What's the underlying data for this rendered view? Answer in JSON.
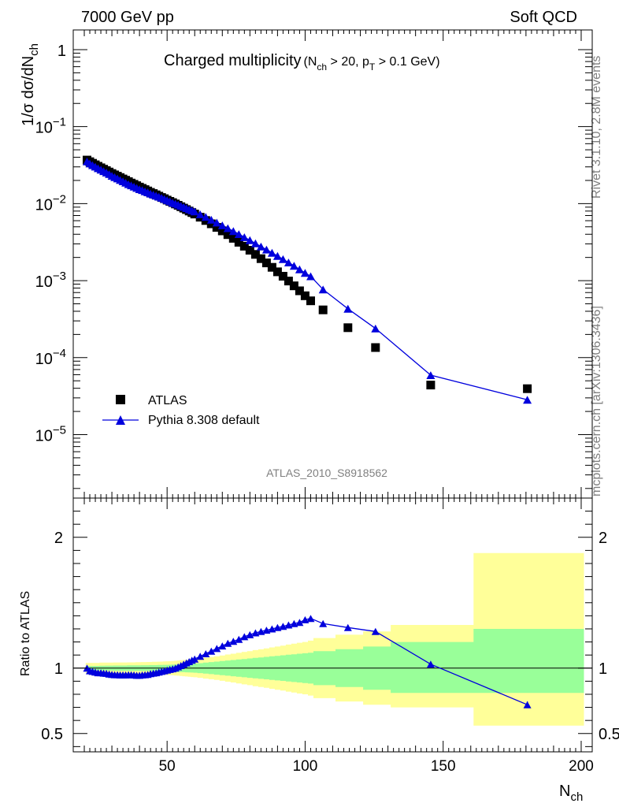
{
  "header": {
    "left": "7000 GeV pp",
    "right": "Soft QCD"
  },
  "main_title": {
    "text": "Charged multiplicity",
    "cond_open": "(N",
    "cond_sub1": "ch",
    "cond_mid": " > 20, p",
    "cond_sub2": "T",
    "cond_end": " > 0.1 GeV)"
  },
  "side_labels": {
    "rivet": "Rivet 3.1.10,  2.8M events",
    "mcplots": "mcplots.cern.ch [arXiv:1306.3436]"
  },
  "analysis_label": "ATLAS_2010_S8918562",
  "top_axis": {
    "ylabel_prefix": "1/σ dσ/dN",
    "ylabel_sub": "ch",
    "scale": "log",
    "ylim": [
      1.5e-06,
      1.8
    ],
    "ticks": [
      {
        "value": 1,
        "label": "1",
        "exp": ""
      },
      {
        "value": 0.1,
        "label": "10",
        "exp": "−1"
      },
      {
        "value": 0.01,
        "label": "10",
        "exp": "−2"
      },
      {
        "value": 0.001,
        "label": "10",
        "exp": "−3"
      },
      {
        "value": 0.0001,
        "label": "10",
        "exp": "−4"
      },
      {
        "value": 1e-05,
        "label": "10",
        "exp": "−5"
      }
    ]
  },
  "bottom_axis": {
    "ylabel": "Ratio to ATLAS",
    "ylim": [
      0.36,
      2.3
    ],
    "ticks": [
      {
        "value": 2,
        "label": "2"
      },
      {
        "value": 1,
        "label": "1"
      },
      {
        "value": 0.5,
        "label": "0.5"
      }
    ]
  },
  "x_axis": {
    "label": "N",
    "label_sub": "ch",
    "xlim": [
      16,
      204
    ],
    "ticks": [
      {
        "value": 50,
        "label": "50"
      },
      {
        "value": 100,
        "label": "100"
      },
      {
        "value": 150,
        "label": "150"
      },
      {
        "value": 200,
        "label": "200"
      }
    ]
  },
  "legend": {
    "position": "lower-left",
    "entries": [
      {
        "label": "ATLAS",
        "marker": "square",
        "color": "#000000"
      },
      {
        "label": "Pythia 8.308 default",
        "marker": "triangle",
        "color": "#0000dd"
      }
    ]
  },
  "colors": {
    "data": "#000000",
    "mc": "#0000dd",
    "band_outer": "#ffff99",
    "band_inner": "#99ff99"
  },
  "chart_data": {
    "type": "scatter",
    "title": "Charged multiplicity",
    "xlabel": "Nch",
    "ylabel": "1/σ dσ/dNch",
    "yscale": "log",
    "x": [
      21,
      22,
      23,
      24,
      25,
      26,
      27,
      28,
      29,
      30,
      31,
      32,
      33,
      34,
      35,
      36,
      37,
      38,
      39,
      40,
      41,
      42,
      43,
      44,
      45,
      46,
      47,
      48,
      49,
      50,
      51,
      52,
      53,
      54,
      55,
      56,
      57,
      58,
      59,
      60,
      62,
      64,
      66,
      68,
      70,
      72,
      74,
      76,
      78,
      80,
      82,
      84,
      86,
      88,
      90,
      92,
      94,
      96,
      98,
      100,
      102,
      106.5,
      115.5,
      125.5,
      145.5,
      180.5
    ],
    "series": [
      {
        "name": "ATLAS",
        "values": [
          0.0368,
          0.035,
          0.0334,
          0.0319,
          0.0305,
          0.0292,
          0.028,
          0.0268,
          0.0257,
          0.0246,
          0.0236,
          0.0227,
          0.0218,
          0.0209,
          0.0201,
          0.0193,
          0.0185,
          0.0178,
          0.0171,
          0.0164,
          0.0158,
          0.0152,
          0.0146,
          0.014,
          0.0135,
          0.013,
          0.0125,
          0.012,
          0.0116,
          0.0111,
          0.0107,
          0.0103,
          0.0099,
          0.00951,
          0.00912,
          0.00874,
          0.00837,
          0.00801,
          0.00766,
          0.00732,
          0.00666,
          0.00604,
          0.00546,
          0.00492,
          0.00442,
          0.00396,
          0.00354,
          0.00315,
          0.0028,
          0.00248,
          0.00219,
          0.00193,
          0.0017,
          0.00149,
          0.0013,
          0.00114,
          0.000987,
          0.000855,
          0.000738,
          0.000636,
          0.000547,
          0.000417,
          0.000245,
          0.000135,
          4.4e-05,
          3.95e-05
        ],
        "ratio_band_inner": [
          [
            0.985,
            1.015
          ],
          [
            0.984,
            1.016
          ],
          [
            0.984,
            1.016
          ],
          [
            0.983,
            1.017
          ],
          [
            0.983,
            1.017
          ],
          [
            0.982,
            1.018
          ],
          [
            0.982,
            1.018
          ],
          [
            0.981,
            1.019
          ],
          [
            0.981,
            1.019
          ],
          [
            0.981,
            1.019
          ],
          [
            0.98,
            1.02
          ],
          [
            0.98,
            1.02
          ],
          [
            0.98,
            1.02
          ],
          [
            0.98,
            1.02
          ],
          [
            0.98,
            1.02
          ],
          [
            0.979,
            1.021
          ],
          [
            0.979,
            1.021
          ],
          [
            0.979,
            1.021
          ],
          [
            0.979,
            1.021
          ],
          [
            0.979,
            1.021
          ],
          [
            0.978,
            1.022
          ],
          [
            0.978,
            1.022
          ],
          [
            0.978,
            1.022
          ],
          [
            0.977,
            1.023
          ],
          [
            0.977,
            1.023
          ],
          [
            0.977,
            1.023
          ],
          [
            0.976,
            1.024
          ],
          [
            0.976,
            1.024
          ],
          [
            0.975,
            1.025
          ],
          [
            0.975,
            1.025
          ],
          [
            0.974,
            1.026
          ],
          [
            0.973,
            1.027
          ],
          [
            0.972,
            1.028
          ],
          [
            0.971,
            1.029
          ],
          [
            0.97,
            1.03
          ],
          [
            0.969,
            1.031
          ],
          [
            0.968,
            1.032
          ],
          [
            0.967,
            1.033
          ],
          [
            0.966,
            1.034
          ],
          [
            0.965,
            1.035
          ],
          [
            0.962,
            1.038
          ],
          [
            0.958,
            1.042
          ],
          [
            0.954,
            1.046
          ],
          [
            0.95,
            1.05
          ],
          [
            0.946,
            1.054
          ],
          [
            0.942,
            1.058
          ],
          [
            0.938,
            1.062
          ],
          [
            0.934,
            1.066
          ],
          [
            0.93,
            1.07
          ],
          [
            0.926,
            1.074
          ],
          [
            0.922,
            1.078
          ],
          [
            0.918,
            1.082
          ],
          [
            0.914,
            1.086
          ],
          [
            0.91,
            1.09
          ],
          [
            0.906,
            1.094
          ],
          [
            0.902,
            1.098
          ],
          [
            0.898,
            1.102
          ],
          [
            0.894,
            1.106
          ],
          [
            0.89,
            1.11
          ],
          [
            0.886,
            1.114
          ],
          [
            0.882,
            1.118
          ],
          [
            0.87,
            1.13
          ],
          [
            0.855,
            1.145
          ],
          [
            0.835,
            1.165
          ],
          [
            0.81,
            1.2
          ],
          [
            0.81,
            1.3
          ]
        ],
        "ratio_band_outer": [
          [
            0.96,
            1.04
          ],
          [
            0.96,
            1.04
          ],
          [
            0.96,
            1.04
          ],
          [
            0.96,
            1.04
          ],
          [
            0.96,
            1.04
          ],
          [
            0.958,
            1.042
          ],
          [
            0.958,
            1.042
          ],
          [
            0.958,
            1.042
          ],
          [
            0.958,
            1.042
          ],
          [
            0.958,
            1.042
          ],
          [
            0.957,
            1.043
          ],
          [
            0.957,
            1.043
          ],
          [
            0.957,
            1.043
          ],
          [
            0.957,
            1.043
          ],
          [
            0.957,
            1.043
          ],
          [
            0.956,
            1.044
          ],
          [
            0.956,
            1.044
          ],
          [
            0.956,
            1.044
          ],
          [
            0.955,
            1.045
          ],
          [
            0.955,
            1.045
          ],
          [
            0.954,
            1.046
          ],
          [
            0.954,
            1.046
          ],
          [
            0.953,
            1.047
          ],
          [
            0.953,
            1.047
          ],
          [
            0.952,
            1.048
          ],
          [
            0.952,
            1.048
          ],
          [
            0.951,
            1.049
          ],
          [
            0.95,
            1.05
          ],
          [
            0.949,
            1.051
          ],
          [
            0.948,
            1.052
          ],
          [
            0.947,
            1.053
          ],
          [
            0.946,
            1.054
          ],
          [
            0.944,
            1.056
          ],
          [
            0.942,
            1.058
          ],
          [
            0.94,
            1.06
          ],
          [
            0.938,
            1.062
          ],
          [
            0.936,
            1.064
          ],
          [
            0.934,
            1.066
          ],
          [
            0.932,
            1.068
          ],
          [
            0.93,
            1.07
          ],
          [
            0.926,
            1.074
          ],
          [
            0.92,
            1.08
          ],
          [
            0.915,
            1.085
          ],
          [
            0.91,
            1.09
          ],
          [
            0.903,
            1.097
          ],
          [
            0.896,
            1.104
          ],
          [
            0.89,
            1.11
          ],
          [
            0.883,
            1.117
          ],
          [
            0.876,
            1.124
          ],
          [
            0.87,
            1.13
          ],
          [
            0.862,
            1.138
          ],
          [
            0.856,
            1.144
          ],
          [
            0.849,
            1.151
          ],
          [
            0.842,
            1.158
          ],
          [
            0.835,
            1.165
          ],
          [
            0.828,
            1.172
          ],
          [
            0.82,
            1.18
          ],
          [
            0.813,
            1.187
          ],
          [
            0.806,
            1.194
          ],
          [
            0.8,
            1.2
          ],
          [
            0.79,
            1.21
          ],
          [
            0.77,
            1.23
          ],
          [
            0.745,
            1.255
          ],
          [
            0.72,
            1.28
          ],
          [
            0.7,
            1.33
          ],
          [
            0.56,
            1.88
          ]
        ]
      },
      {
        "name": "Pythia 8.308 default",
        "values": [
          0.0353,
          0.0332,
          0.0316,
          0.0302,
          0.0288,
          0.0276,
          0.0264,
          0.0253,
          0.0242,
          0.023,
          0.0221,
          0.0212,
          0.0203,
          0.0195,
          0.0187,
          0.0179,
          0.0173,
          0.0166,
          0.016,
          0.0154,
          0.015,
          0.0144,
          0.014,
          0.0135,
          0.0131,
          0.0127,
          0.0123,
          0.0119,
          0.0115,
          0.0111,
          0.0107,
          0.0103,
          0.01,
          0.0097,
          0.00936,
          0.00905,
          0.00874,
          0.00845,
          0.00817,
          0.0079,
          0.00726,
          0.00671,
          0.00617,
          0.00567,
          0.00522,
          0.00479,
          0.00439,
          0.00402,
          0.00367,
          0.00335,
          0.00305,
          0.00277,
          0.00253,
          0.0023,
          0.00209,
          0.0019,
          0.00172,
          0.00156,
          0.0014,
          0.00126,
          0.00114,
          0.000767,
          0.000431,
          0.000239,
          5.92e-05,
          2.84e-05
        ],
        "ratio": [
          1.0,
          0.98,
          0.975,
          0.97,
          0.965,
          0.965,
          0.962,
          0.96,
          0.955,
          0.952,
          0.95,
          0.95,
          0.948,
          0.948,
          0.948,
          0.95,
          0.95,
          0.948,
          0.945,
          0.945,
          0.948,
          0.95,
          0.952,
          0.958,
          0.962,
          0.965,
          0.97,
          0.975,
          0.98,
          0.985,
          0.99,
          0.995,
          1.0,
          1.01,
          1.02,
          1.03,
          1.04,
          1.05,
          1.06,
          1.07,
          1.09,
          1.11,
          1.13,
          1.15,
          1.17,
          1.19,
          1.205,
          1.22,
          1.24,
          1.255,
          1.27,
          1.28,
          1.29,
          1.3,
          1.31,
          1.32,
          1.33,
          1.34,
          1.35,
          1.37,
          1.38,
          1.34,
          1.31,
          1.28,
          1.03,
          0.72
        ],
        "ratio_err": [
          0,
          0,
          0,
          0,
          0,
          0,
          0,
          0,
          0,
          0,
          0,
          0,
          0,
          0,
          0,
          0,
          0,
          0,
          0,
          0,
          0,
          0,
          0,
          0,
          0,
          0,
          0,
          0,
          0,
          0,
          0,
          0,
          0,
          0,
          0,
          0,
          0,
          0,
          0,
          0,
          0,
          0,
          0,
          0,
          0,
          0,
          0,
          0,
          0,
          0,
          0,
          0,
          0,
          0,
          0,
          0,
          0,
          0,
          0,
          0,
          0,
          0,
          0,
          0,
          0.01,
          0.025
        ]
      }
    ],
    "band_edges": [
      20.5,
      21.5,
      22.5,
      23.5,
      24.5,
      25.5,
      26.5,
      27.5,
      28.5,
      29.5,
      30.5,
      31.5,
      32.5,
      33.5,
      34.5,
      35.5,
      36.5,
      37.5,
      38.5,
      39.5,
      40.5,
      41.5,
      42.5,
      43.5,
      44.5,
      45.5,
      46.5,
      47.5,
      48.5,
      49.5,
      50.5,
      51.5,
      52.5,
      53.5,
      54.5,
      55.5,
      56.5,
      57.5,
      58.5,
      59.5,
      61,
      63,
      65,
      67,
      69,
      71,
      73,
      75,
      77,
      79,
      81,
      83,
      85,
      87,
      89,
      91,
      93,
      95,
      97,
      99,
      101,
      103,
      111,
      121,
      131,
      161,
      201
    ]
  }
}
